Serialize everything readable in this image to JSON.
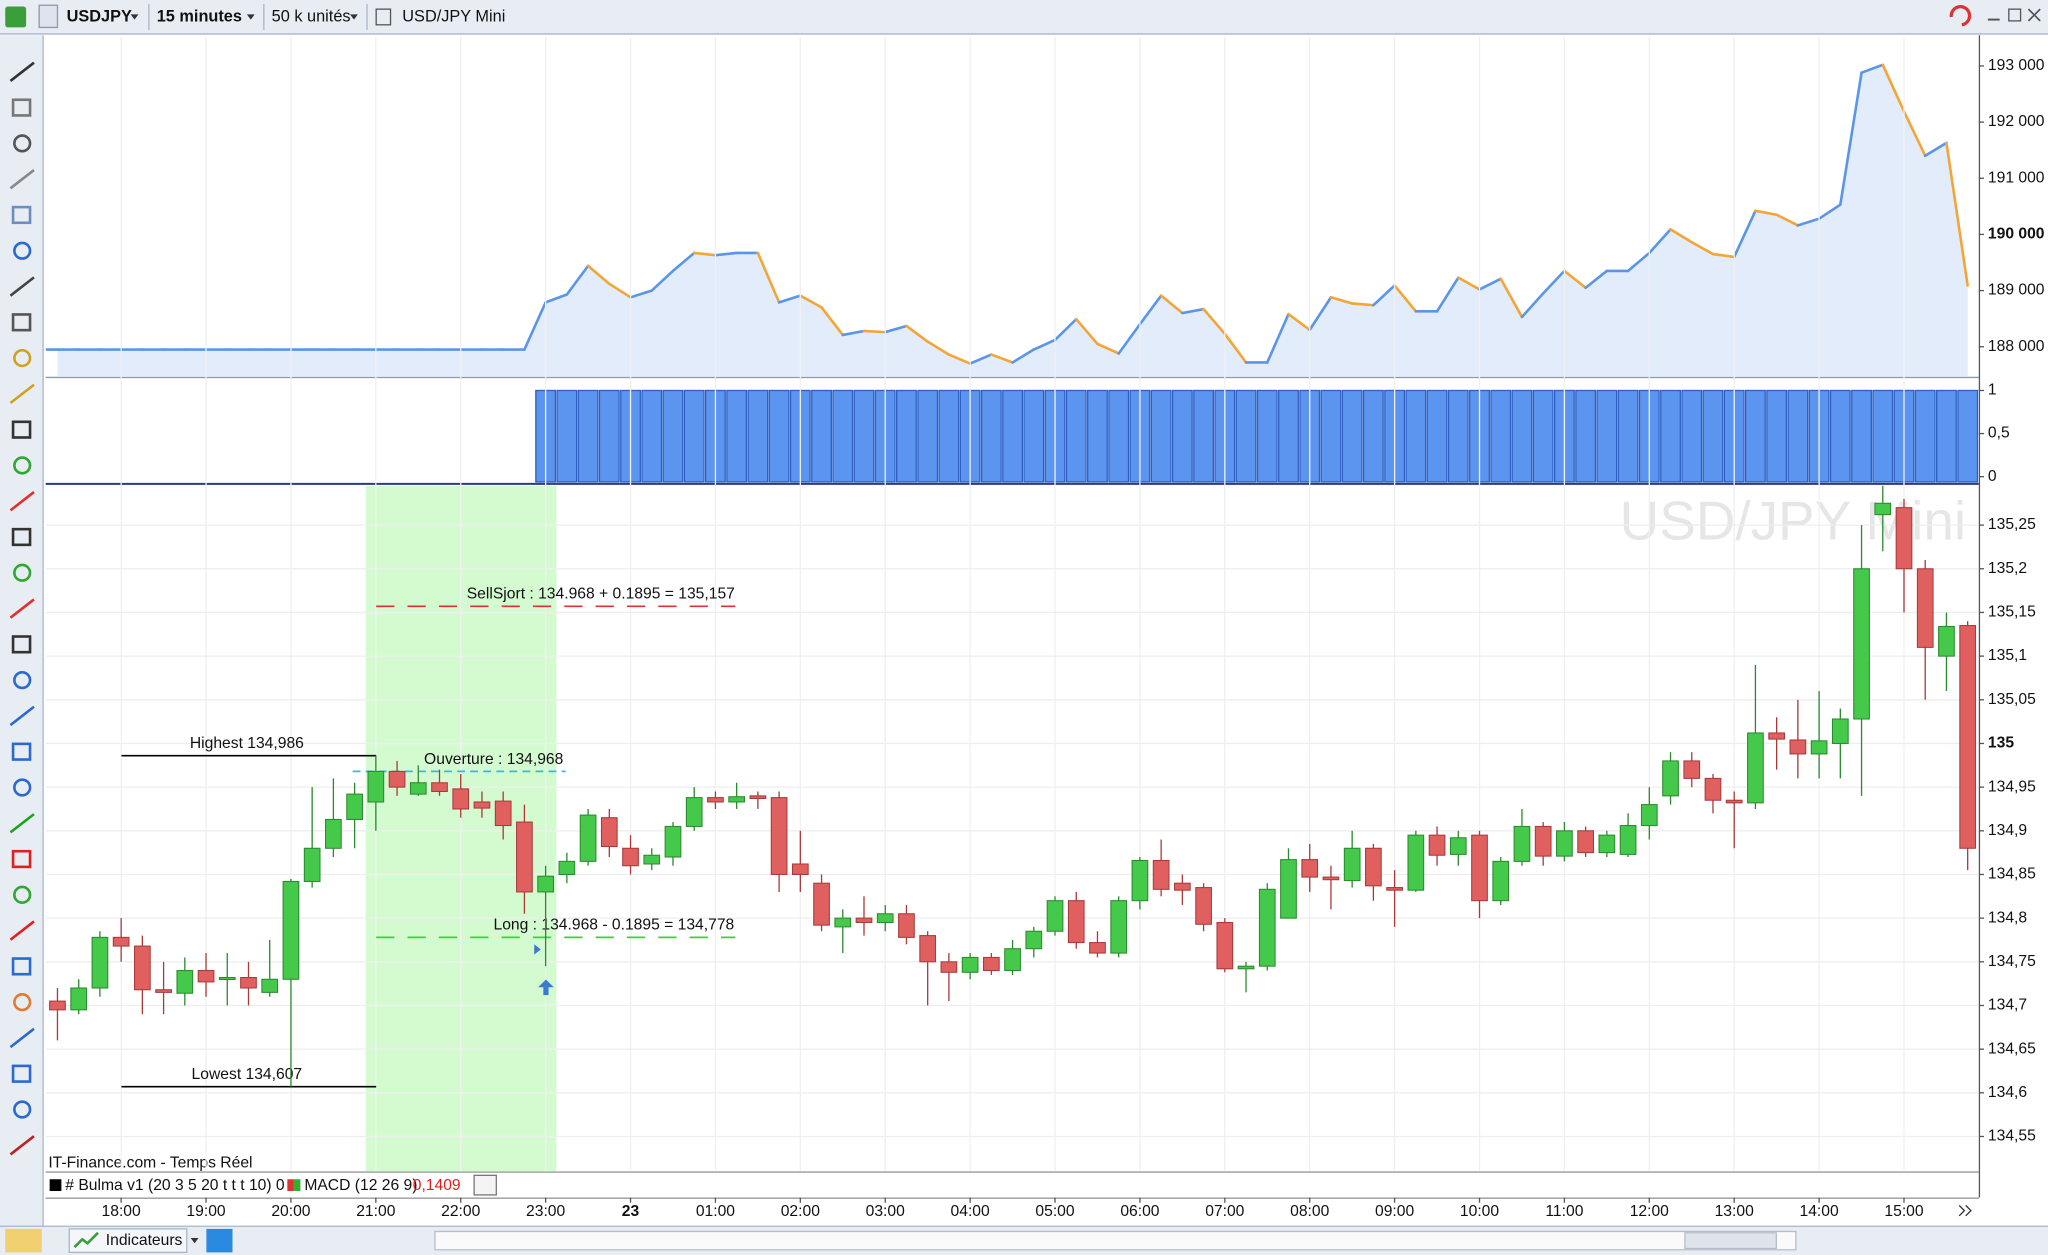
{
  "toolbar": {
    "symbol": "USDJPY",
    "timeframe": "15 minutes",
    "units": "50 k unités",
    "instrument": "USD/JPY Mini"
  },
  "footer": {
    "source": "IT-Finance.com - Temps Réel",
    "indicator1": "# Bulma v1 (20 3 5 20 t t t 10) 0",
    "indicator2": "MACD (12 26 9)",
    "indicator2_value": "0,1409",
    "indicators_button": "Indicateurs"
  },
  "chart_data": [
    {
      "type": "line",
      "up_color": "#5b95e8",
      "down_color": "#f5a535",
      "fill": "#e3ecfa",
      "ylim": [
        187500,
        193500
      ],
      "yticks": [
        {
          "value": 188000,
          "label": "188 000"
        },
        {
          "value": 189000,
          "label": "189 000"
        },
        {
          "value": 190000,
          "label": "190 000"
        },
        {
          "value": 191000,
          "label": "191 000"
        },
        {
          "value": 192000,
          "label": "192 000"
        },
        {
          "value": 193000,
          "label": "193 000"
        }
      ],
      "bold_ytick": 190000,
      "values": [
        187950,
        187950,
        187950,
        187950,
        187950,
        187950,
        187950,
        187950,
        187950,
        187950,
        187950,
        187950,
        187950,
        187950,
        187950,
        187950,
        187950,
        187950,
        187950,
        187950,
        187950,
        187950,
        187950,
        188790,
        188930,
        189440,
        189120,
        188880,
        189000,
        189350,
        189670,
        189630,
        189670,
        189670,
        188790,
        188910,
        188700,
        188210,
        188280,
        188260,
        188370,
        188090,
        187860,
        187700,
        187860,
        187720,
        187950,
        188120,
        188490,
        188050,
        187880,
        188400,
        188910,
        188600,
        188670,
        188230,
        187720,
        187720,
        188580,
        188300,
        188880,
        188770,
        188740,
        189090,
        188630,
        188630,
        189230,
        189020,
        189210,
        188530,
        188950,
        189350,
        189050,
        189350,
        189350,
        189670,
        190090,
        189860,
        189650,
        189600,
        190420,
        190350,
        190160,
        190280,
        190530,
        192880,
        193020,
        192190,
        191400,
        191630,
        189090
      ]
    },
    {
      "type": "bar",
      "color": "#5b95f0",
      "ylim": [
        0,
        1
      ],
      "yticks": [
        0,
        {
          "value": 0.5,
          "label": "0,5"
        },
        1
      ],
      "values": [
        0,
        0,
        0,
        0,
        0,
        0,
        0,
        0,
        0,
        0,
        0,
        0,
        0,
        0,
        0,
        0,
        0,
        0,
        0,
        0,
        0,
        0,
        0,
        1,
        1,
        1,
        1,
        1,
        1,
        1,
        1,
        1,
        1,
        1,
        1,
        1,
        1,
        1,
        1,
        1,
        1,
        1,
        1,
        1,
        1,
        1,
        1,
        1,
        1,
        1,
        1,
        1,
        1,
        1,
        1,
        1,
        1,
        1,
        1,
        1,
        1,
        1,
        1,
        1,
        1,
        1,
        1,
        1,
        1,
        1,
        1,
        1,
        1,
        1,
        1,
        1,
        1,
        1,
        1,
        1,
        1,
        1,
        1,
        1,
        1,
        1,
        1,
        1,
        1,
        1,
        1
      ]
    },
    {
      "type": "candlestick",
      "up_color": "#45c94a",
      "down_color": "#e06060",
      "grid": true,
      "ylim": [
        134.51,
        135.295
      ],
      "yticks": [
        {
          "value": 134.55,
          "label": "134,55"
        },
        {
          "value": 134.6,
          "label": "134,6"
        },
        {
          "value": 134.65,
          "label": "134,65"
        },
        {
          "value": 134.7,
          "label": "134,7"
        },
        {
          "value": 134.75,
          "label": "134,75"
        },
        {
          "value": 134.8,
          "label": "134,8"
        },
        {
          "value": 134.85,
          "label": "134,85"
        },
        {
          "value": 134.9,
          "label": "134,9"
        },
        {
          "value": 134.95,
          "label": "134,95"
        },
        135,
        {
          "value": 135.05,
          "label": "135,05"
        },
        {
          "value": 135.1,
          "label": "135,1"
        },
        {
          "value": 135.15,
          "label": "135,15"
        },
        {
          "value": 135.2,
          "label": "135,2"
        },
        {
          "value": 135.25,
          "label": "135,25"
        }
      ],
      "bold_ytick": 135,
      "categories": [
        null,
        null,
        null,
        "18:00",
        null,
        null,
        null,
        "19:00",
        null,
        null,
        null,
        "20:00",
        null,
        null,
        null,
        "21:00",
        null,
        null,
        null,
        "22:00",
        null,
        null,
        null,
        "23:00",
        null,
        null,
        null,
        "23",
        null,
        null,
        null,
        "01:00",
        null,
        null,
        null,
        "02:00",
        null,
        null,
        null,
        "03:00",
        null,
        null,
        null,
        "04:00",
        null,
        null,
        null,
        "05:00",
        null,
        null,
        null,
        "06:00",
        null,
        null,
        null,
        "07:00",
        null,
        null,
        null,
        "08:00",
        null,
        null,
        null,
        "09:00",
        null,
        null,
        null,
        "10:00",
        null,
        null,
        null,
        "11:00",
        null,
        null,
        null,
        "12:00",
        null,
        null,
        null,
        "13:00",
        null,
        null,
        null,
        "14:00",
        null,
        null,
        null,
        "15:00",
        null,
        null,
        null
      ],
      "open": [
        134.705,
        134.695,
        134.72,
        134.778,
        134.768,
        134.718,
        134.714,
        134.74,
        134.73,
        134.732,
        134.715,
        134.73,
        134.842,
        134.88,
        134.913,
        134.933,
        134.968,
        134.942,
        134.955,
        134.948,
        134.933,
        134.934,
        134.91,
        134.83,
        134.85,
        134.865,
        134.915,
        134.88,
        134.862,
        134.87,
        134.905,
        134.938,
        134.933,
        134.94,
        134.938,
        134.862,
        134.84,
        134.79,
        134.8,
        134.795,
        134.805,
        134.78,
        134.75,
        134.738,
        134.755,
        134.74,
        134.765,
        134.785,
        134.82,
        134.772,
        134.76,
        134.82,
        134.866,
        134.84,
        134.835,
        134.795,
        134.742,
        134.745,
        134.8,
        134.867,
        134.847,
        134.843,
        134.88,
        134.835,
        134.832,
        134.895,
        134.873,
        134.895,
        134.82,
        134.865,
        134.905,
        134.871,
        134.9,
        134.875,
        134.873,
        134.906,
        134.94,
        134.98,
        134.96,
        134.935,
        134.932,
        135.012,
        135.004,
        134.988,
        135.0,
        135.028,
        135.262,
        135.27,
        135.2,
        135.1,
        135.135
      ],
      "high": [
        134.72,
        134.73,
        134.785,
        134.8,
        134.78,
        134.75,
        134.755,
        134.76,
        134.76,
        134.75,
        134.775,
        134.845,
        134.95,
        134.96,
        134.955,
        134.986,
        134.98,
        134.975,
        134.97,
        134.965,
        134.945,
        134.945,
        134.93,
        134.86,
        134.875,
        134.925,
        134.925,
        134.895,
        134.88,
        134.91,
        134.95,
        134.945,
        134.955,
        134.945,
        134.945,
        134.9,
        134.85,
        134.81,
        134.825,
        134.815,
        134.815,
        134.785,
        134.76,
        134.76,
        134.76,
        134.775,
        134.79,
        134.825,
        134.83,
        134.785,
        134.825,
        134.87,
        134.89,
        134.85,
        134.84,
        134.8,
        134.75,
        134.84,
        134.88,
        134.885,
        134.86,
        134.9,
        134.885,
        134.855,
        134.9,
        134.905,
        134.9,
        134.9,
        134.87,
        134.925,
        134.91,
        134.91,
        134.905,
        134.9,
        134.92,
        134.95,
        134.99,
        134.99,
        134.965,
        134.945,
        135.09,
        135.03,
        135.05,
        135.06,
        135.04,
        135.25,
        135.3,
        135.28,
        135.21,
        135.15,
        135.14
      ],
      "low": [
        134.66,
        134.69,
        134.71,
        134.75,
        134.69,
        134.69,
        134.7,
        134.71,
        134.7,
        134.7,
        134.71,
        134.607,
        134.835,
        134.87,
        134.88,
        134.9,
        134.94,
        134.94,
        134.94,
        134.915,
        134.915,
        134.89,
        134.805,
        134.745,
        134.84,
        134.86,
        134.87,
        134.85,
        134.855,
        134.86,
        134.9,
        134.925,
        134.925,
        134.925,
        134.83,
        134.83,
        134.785,
        134.76,
        134.78,
        134.785,
        134.77,
        134.7,
        134.705,
        134.73,
        134.735,
        134.735,
        134.755,
        134.78,
        134.765,
        134.755,
        134.755,
        134.81,
        134.825,
        134.815,
        134.785,
        134.738,
        134.715,
        134.74,
        134.8,
        134.83,
        134.81,
        134.835,
        134.82,
        134.79,
        134.83,
        134.86,
        134.86,
        134.8,
        134.815,
        134.86,
        134.86,
        134.865,
        134.87,
        134.87,
        134.87,
        134.89,
        134.93,
        134.95,
        134.92,
        134.88,
        134.925,
        134.97,
        134.96,
        134.96,
        134.96,
        134.94,
        135.22,
        135.15,
        135.05,
        135.06,
        134.855
      ],
      "close": [
        134.695,
        134.72,
        134.778,
        134.768,
        134.718,
        134.715,
        134.74,
        134.727,
        134.732,
        134.72,
        134.73,
        134.842,
        134.88,
        134.913,
        134.942,
        134.968,
        134.95,
        134.955,
        134.945,
        134.925,
        134.926,
        134.906,
        134.83,
        134.848,
        134.865,
        134.918,
        134.882,
        134.86,
        134.872,
        134.905,
        134.938,
        134.933,
        134.939,
        134.937,
        134.85,
        134.85,
        134.792,
        134.8,
        134.795,
        134.805,
        134.778,
        134.75,
        134.738,
        134.755,
        134.74,
        134.765,
        134.785,
        134.82,
        134.772,
        134.76,
        134.82,
        134.866,
        134.833,
        134.832,
        134.793,
        134.742,
        134.745,
        134.833,
        134.867,
        134.847,
        134.844,
        134.88,
        134.837,
        134.832,
        134.895,
        134.872,
        134.892,
        134.82,
        134.865,
        134.905,
        134.871,
        134.9,
        134.875,
        134.895,
        134.906,
        134.93,
        134.98,
        134.96,
        134.935,
        134.932,
        135.012,
        135.005,
        134.988,
        135.003,
        135.028,
        135.2,
        135.275,
        135.2,
        135.11,
        135.134,
        134.88
      ],
      "annotations": [
        {
          "text": "SellSjort : 134.968 + 0.1895 =  135,157",
          "level": 135.157,
          "color": "#e03030"
        },
        {
          "text": "Highest  134,986",
          "level": 134.986,
          "color": "#000000"
        },
        {
          "text": "Ouverture :  134,968",
          "level": 134.968,
          "color": "#3fb4e0"
        },
        {
          "text": "Long : 134.968 - 0.1895 =  134,778",
          "level": 134.778,
          "color": "#3ecf3e"
        },
        {
          "text": "Lowest 134,607",
          "level": 134.607,
          "color": "#000000"
        }
      ]
    }
  ]
}
